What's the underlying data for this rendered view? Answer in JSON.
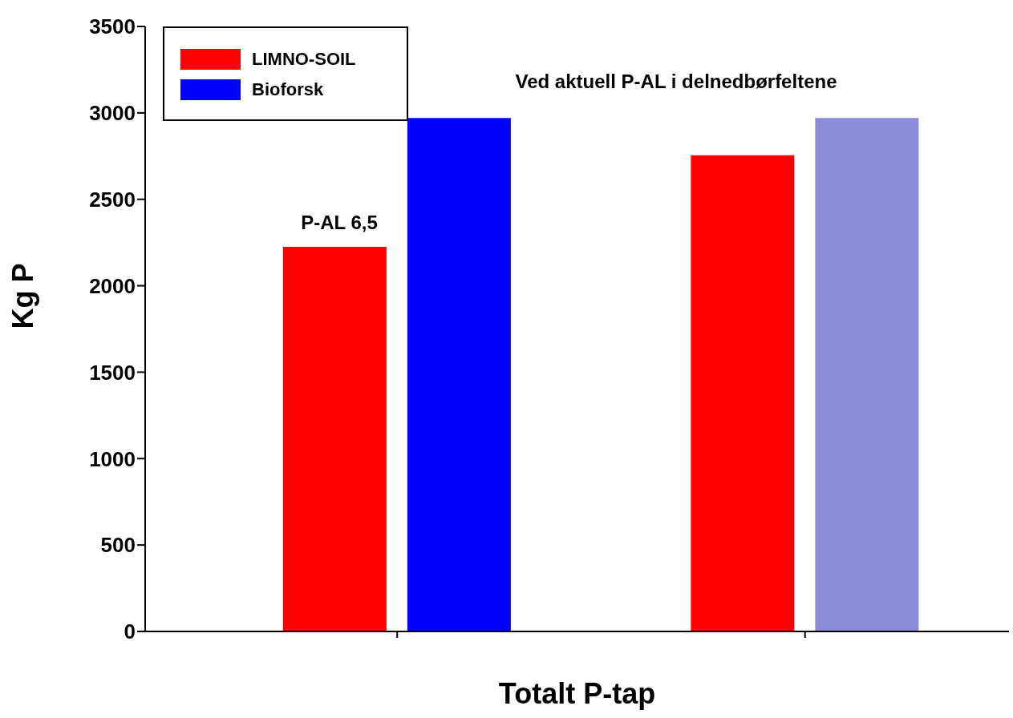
{
  "chart_data": {
    "type": "bar",
    "xlabel": "Totalt P-tap",
    "ylabel": "Kg P",
    "categories": [
      null,
      null
    ],
    "series": [
      {
        "name": "LIMNO-SOIL",
        "color": "#ff0000",
        "colors": [
          "#ff0000",
          "#ff0000"
        ],
        "values": [
          2225,
          2755
        ]
      },
      {
        "name": "Bioforsk",
        "color": "#0000ff",
        "colors": [
          "#0000ff",
          "#8c8cd8"
        ],
        "values": [
          2970,
          2970
        ]
      }
    ],
    "ylim": [
      0,
      3500
    ],
    "yticks": [
      0,
      500,
      1000,
      1500,
      2000,
      2500,
      3000,
      3500
    ],
    "grid": false,
    "legend": "top left",
    "annotations": [
      "P-AL 6,5",
      "Ved aktuell P-AL i delnedbørfeltene"
    ]
  }
}
